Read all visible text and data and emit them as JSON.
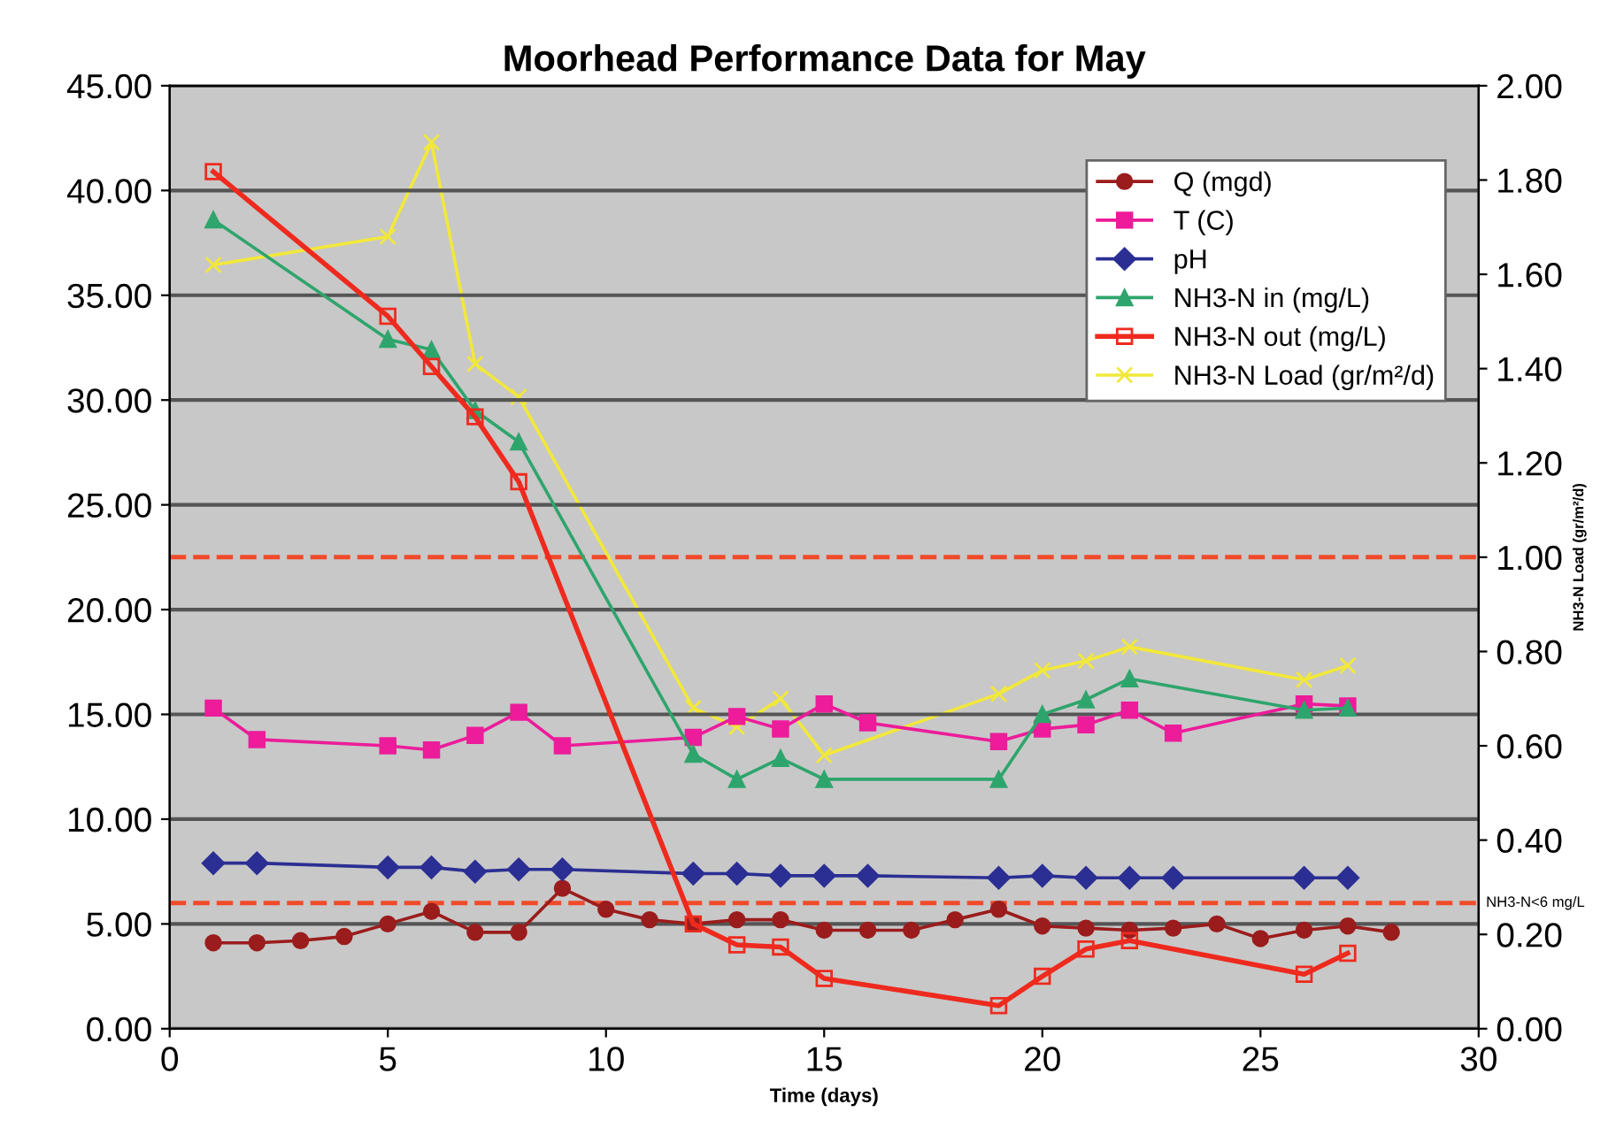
{
  "chart_data": {
    "type": "line",
    "title": "Moorhead Performance Data for May",
    "xlabel": "Time (days)",
    "y2label": "NH3-N Load (gr/m²/d)",
    "xlim": [
      0,
      30
    ],
    "xticks": [
      0,
      5,
      10,
      15,
      20,
      25,
      30
    ],
    "ylim": [
      0,
      45
    ],
    "yticks": [
      {
        "value": 0,
        "label": "0.00"
      },
      {
        "value": 5,
        "label": "5.00"
      },
      {
        "value": 10,
        "label": "10.00"
      },
      {
        "value": 15,
        "label": "15.00"
      },
      {
        "value": 20,
        "label": "20.00"
      },
      {
        "value": 25,
        "label": "25.00"
      },
      {
        "value": 30,
        "label": "30.00"
      },
      {
        "value": 35,
        "label": "35.00"
      },
      {
        "value": 40,
        "label": "40.00"
      },
      {
        "value": 45,
        "label": "45.00"
      }
    ],
    "y2lim": [
      0,
      2
    ],
    "y2ticks": [
      {
        "value": 0,
        "label": "0.00"
      },
      {
        "value": 0.2,
        "label": "0.20"
      },
      {
        "value": 0.4,
        "label": "0.40"
      },
      {
        "value": 0.6,
        "label": "0.60"
      },
      {
        "value": 0.8,
        "label": "0.80"
      },
      {
        "value": 1.0,
        "label": "1.00"
      },
      {
        "value": 1.2,
        "label": "1.20"
      },
      {
        "value": 1.4,
        "label": "1.40"
      },
      {
        "value": 1.6,
        "label": "1.60"
      },
      {
        "value": 1.8,
        "label": "1.80"
      },
      {
        "value": 2.0,
        "label": "2.00"
      }
    ],
    "grid": "y",
    "legend": "top right",
    "line_style": "solid",
    "ref_lines": [
      {
        "axis": "y2",
        "value": 1.0,
        "color": "#f04a2a",
        "line_style": "dashed"
      },
      {
        "axis": "y",
        "value": 6,
        "label": "NH3-N<6 mg/L",
        "color": "#f04a2a",
        "line_style": "dashed"
      }
    ],
    "series": [
      {
        "name": "Q (mgd)",
        "color": "#9b1c1c",
        "marker": "circle",
        "x": [
          1,
          2,
          3,
          4,
          5,
          6,
          7,
          8,
          9,
          10,
          11,
          12,
          13,
          14,
          15,
          16,
          17,
          18,
          19,
          20,
          21,
          22,
          23,
          24,
          25,
          26,
          27,
          28
        ],
        "values": [
          4.1,
          4.1,
          4.2,
          4.4,
          5.0,
          5.6,
          4.6,
          4.6,
          6.7,
          5.7,
          5.2,
          5.0,
          5.2,
          5.2,
          4.7,
          4.7,
          4.7,
          5.2,
          5.7,
          4.9,
          4.8,
          4.7,
          4.8,
          5.0,
          4.3,
          4.7,
          4.9,
          4.6
        ]
      },
      {
        "name": "T (C)",
        "color": "#ec1c9a",
        "marker": "square",
        "x": [
          1,
          2,
          5,
          6,
          7,
          8,
          9,
          12,
          13,
          14,
          15,
          16,
          19,
          20,
          21,
          22,
          23,
          26,
          27
        ],
        "values": [
          15.3,
          13.8,
          13.5,
          13.3,
          14.0,
          15.1,
          13.5,
          13.9,
          14.9,
          14.3,
          15.5,
          14.6,
          13.7,
          14.3,
          14.5,
          15.2,
          14.1,
          15.5,
          15.4
        ]
      },
      {
        "name": "pH",
        "color": "#2b2f93",
        "marker": "diamond",
        "x": [
          1,
          2,
          5,
          6,
          7,
          8,
          9,
          12,
          13,
          14,
          15,
          16,
          19,
          20,
          21,
          22,
          23,
          26,
          27
        ],
        "values": [
          7.9,
          7.9,
          7.7,
          7.7,
          7.5,
          7.6,
          7.6,
          7.4,
          7.4,
          7.3,
          7.3,
          7.3,
          7.2,
          7.3,
          7.2,
          7.2,
          7.2,
          7.2,
          7.2
        ]
      },
      {
        "name": "NH3-N in (mg/L)",
        "color": "#2ea56c",
        "marker": "triangle",
        "x": [
          1,
          5,
          6,
          7,
          8,
          12,
          13,
          14,
          15,
          19,
          20,
          21,
          22,
          26,
          27
        ],
        "values": [
          38.6,
          32.9,
          32.4,
          29.5,
          28.0,
          13.1,
          11.9,
          12.9,
          11.9,
          11.9,
          15.0,
          15.7,
          16.7,
          15.2,
          15.3
        ]
      },
      {
        "name": "NH3-N out (mg/L)",
        "color": "#ee2a1e",
        "marker": "square",
        "x": [
          1,
          5,
          6,
          7,
          8,
          12,
          13,
          14,
          15,
          19,
          20,
          21,
          22,
          26,
          27
        ],
        "values": [
          40.9,
          34.0,
          31.6,
          29.2,
          26.1,
          5.0,
          4.0,
          3.9,
          2.4,
          1.1,
          2.5,
          3.8,
          4.2,
          2.6,
          3.6
        ]
      },
      {
        "name": "NH3-N Load (gr/m²/d)",
        "color": "#f2e83a",
        "marker": "cross",
        "axis": "y2",
        "x": [
          1,
          5,
          6,
          7,
          8,
          12,
          13,
          14,
          15,
          19,
          20,
          21,
          22,
          26,
          27
        ],
        "values": [
          1.62,
          1.68,
          1.88,
          1.41,
          1.34,
          0.68,
          0.64,
          0.7,
          0.58,
          0.71,
          0.76,
          0.78,
          0.81,
          0.74,
          0.77
        ]
      }
    ]
  }
}
